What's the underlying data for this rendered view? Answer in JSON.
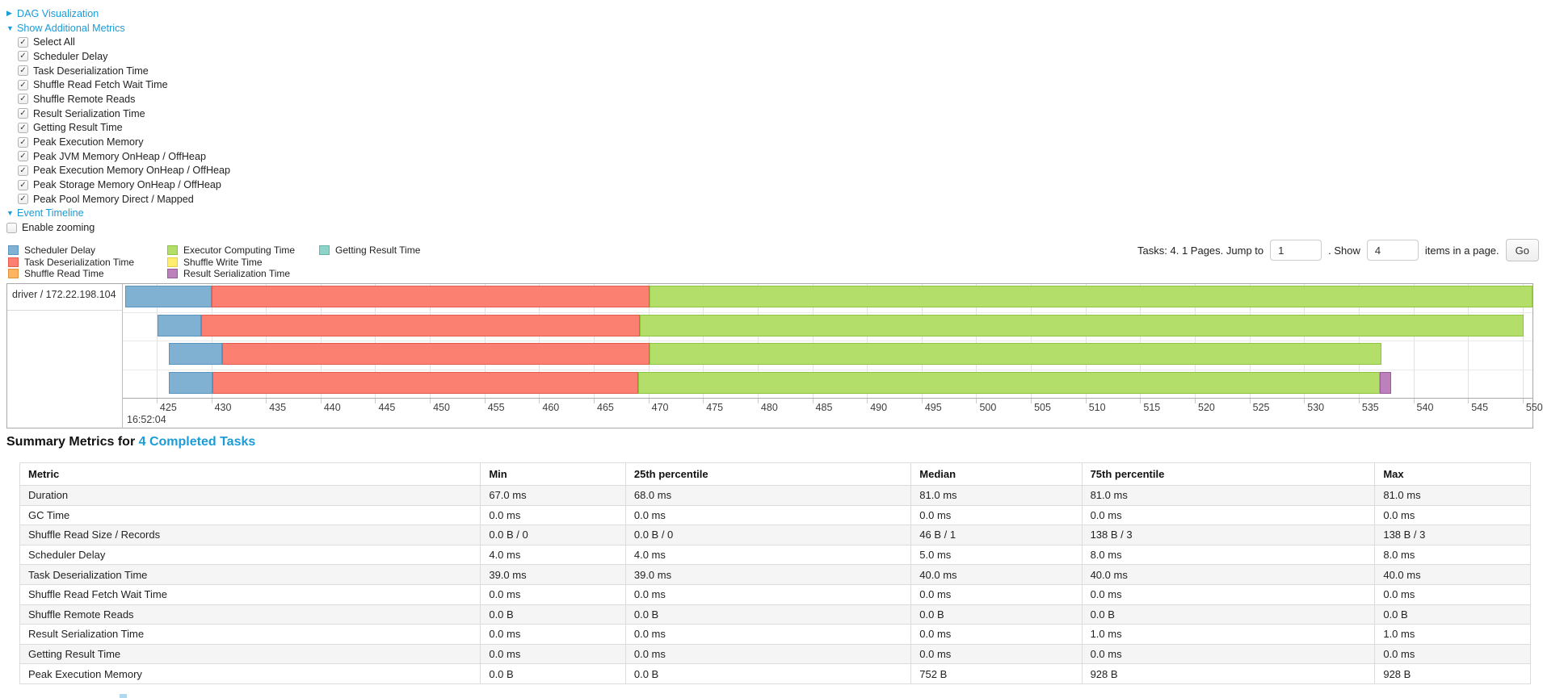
{
  "icons": {
    "collapsed_arrow": "▶",
    "expanded_arrow": "▼",
    "checkmark": "✓"
  },
  "controls": {
    "dag_link": "DAG Visualization",
    "metrics_link": "Show Additional Metrics",
    "metrics_options": [
      "Select All",
      "Scheduler Delay",
      "Task Deserialization Time",
      "Shuffle Read Fetch Wait Time",
      "Shuffle Remote Reads",
      "Result Serialization Time",
      "Getting Result Time",
      "Peak Execution Memory",
      "Peak JVM Memory OnHeap / OffHeap",
      "Peak Execution Memory OnHeap / OffHeap",
      "Peak Storage Memory OnHeap / OffHeap",
      "Peak Pool Memory Direct / Mapped"
    ],
    "metrics_all_checked": true,
    "event_timeline_link": "Event Timeline",
    "enable_zooming_label": "Enable zooming",
    "enable_zooming_checked": false
  },
  "pagination": {
    "prefix": "Tasks: 4. 1 Pages. Jump to",
    "jump_value": "1",
    "mid": ". Show",
    "show_value": "4",
    "suffix": "items in a page.",
    "go_label": "Go"
  },
  "colors": {
    "scheduler_delay": {
      "label": "Scheduler Delay",
      "fill": "#80B1D3",
      "border": "#5b94bd"
    },
    "task_deserialization": {
      "label": "Task Deserialization Time",
      "fill": "#FB8072",
      "border": "#e05b50"
    },
    "shuffle_read": {
      "label": "Shuffle Read Time",
      "fill": "#FDB462",
      "border": "#e0933a"
    },
    "executor_computing": {
      "label": "Executor Computing Time",
      "fill": "#B3DE69",
      "border": "#8fc43f"
    },
    "shuffle_write": {
      "label": "Shuffle Write Time",
      "fill": "#FFED6F",
      "border": "#e3cf3f"
    },
    "result_serialization": {
      "label": "Result Serialization Time",
      "fill": "#BC80BD",
      "border": "#9a5a9e"
    },
    "getting_result": {
      "label": "Getting Result Time",
      "fill": "#8DD3C7",
      "border": "#62b8a8"
    }
  },
  "legend_order": [
    "scheduler_delay",
    "task_deserialization",
    "shuffle_read",
    "executor_computing",
    "shuffle_write",
    "result_serialization",
    "getting_result"
  ],
  "chart_data": {
    "type": "timeline",
    "group_label": "driver / 172.22.198.104",
    "x_axis": {
      "unit": "ms",
      "start_time_label": "16:52:04",
      "domain_ms": [
        421.9,
        550.9
      ],
      "ticks_ms": [
        425,
        430,
        435,
        440,
        445,
        450,
        455,
        460,
        465,
        470,
        475,
        480,
        485,
        490,
        495,
        500,
        505,
        510,
        515,
        520,
        525,
        530,
        535,
        540,
        545,
        550
      ]
    },
    "tasks": [
      {
        "start": 422.1,
        "segments": [
          [
            "scheduler_delay",
            430.0
          ],
          [
            "task_deserialization",
            470.1
          ],
          [
            "executor_computing",
            551.0
          ]
        ]
      },
      {
        "start": 425.1,
        "segments": [
          [
            "scheduler_delay",
            429.1
          ],
          [
            "task_deserialization",
            469.2
          ],
          [
            "executor_computing",
            550.1
          ]
        ]
      },
      {
        "start": 426.1,
        "segments": [
          [
            "scheduler_delay",
            431.0
          ],
          [
            "task_deserialization",
            470.1
          ],
          [
            "executor_computing",
            537.1
          ]
        ]
      },
      {
        "start": 426.1,
        "segments": [
          [
            "scheduler_delay",
            430.1
          ],
          [
            "task_deserialization",
            469.1
          ],
          [
            "executor_computing",
            536.9
          ],
          [
            "result_serialization",
            538.0
          ]
        ]
      }
    ]
  },
  "summary": {
    "title_prefix": "Summary Metrics for",
    "title_link": "4 Completed Tasks",
    "table": {
      "headers": [
        "Metric",
        "Min",
        "25th percentile",
        "Median",
        "75th percentile",
        "Max"
      ],
      "col_widths_pct": [
        30.5,
        9.6,
        18.9,
        11.3,
        19.4,
        10.3
      ],
      "rows": [
        {
          "metric": "Duration",
          "values": [
            "67.0 ms",
            "68.0 ms",
            "81.0 ms",
            "81.0 ms",
            "81.0 ms"
          ]
        },
        {
          "metric": "GC Time",
          "values": [
            "0.0 ms",
            "0.0 ms",
            "0.0 ms",
            "0.0 ms",
            "0.0 ms"
          ]
        },
        {
          "metric": "Shuffle Read Size / Records",
          "values": [
            "0.0 B / 0",
            "0.0 B / 0",
            "46 B / 1",
            "138 B / 3",
            "138 B / 3"
          ]
        },
        {
          "metric": "Scheduler Delay",
          "values": [
            "4.0 ms",
            "4.0 ms",
            "5.0 ms",
            "8.0 ms",
            "8.0 ms"
          ]
        },
        {
          "metric": "Task Deserialization Time",
          "values": [
            "39.0 ms",
            "39.0 ms",
            "40.0 ms",
            "40.0 ms",
            "40.0 ms"
          ]
        },
        {
          "metric": "Shuffle Read Fetch Wait Time",
          "values": [
            "0.0 ms",
            "0.0 ms",
            "0.0 ms",
            "0.0 ms",
            "0.0 ms"
          ]
        },
        {
          "metric": "Shuffle Remote Reads",
          "values": [
            "0.0 B",
            "0.0 B",
            "0.0 B",
            "0.0 B",
            "0.0 B"
          ]
        },
        {
          "metric": "Result Serialization Time",
          "values": [
            "0.0 ms",
            "0.0 ms",
            "0.0 ms",
            "1.0 ms",
            "1.0 ms"
          ]
        },
        {
          "metric": "Getting Result Time",
          "values": [
            "0.0 ms",
            "0.0 ms",
            "0.0 ms",
            "0.0 ms",
            "0.0 ms"
          ]
        },
        {
          "metric": "Peak Execution Memory",
          "values": [
            "0.0 B",
            "0.0 B",
            "752 B",
            "928 B",
            "928 B"
          ]
        }
      ]
    }
  }
}
